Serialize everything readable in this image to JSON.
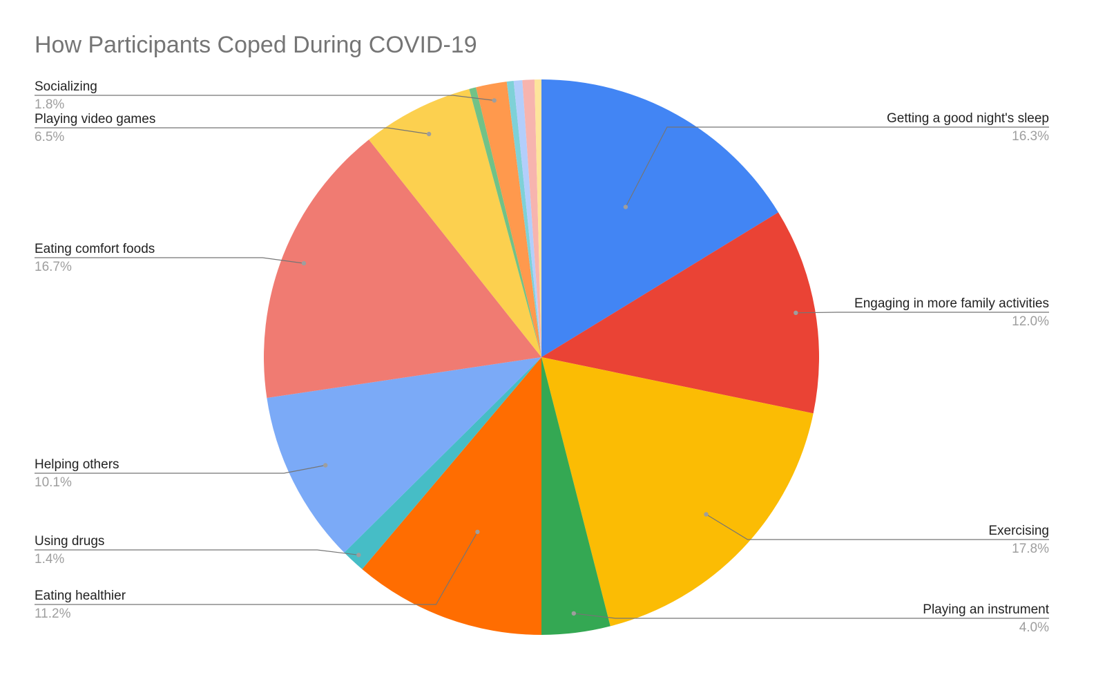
{
  "chart_data": {
    "type": "pie",
    "title": "How Participants Coped During COVID-19",
    "slices": [
      {
        "label": "Getting a good night's sleep",
        "value": 16.3,
        "pct_label": "16.3%",
        "color": "#4285f4"
      },
      {
        "label": "Engaging in more family activities",
        "value": 12.0,
        "pct_label": "12.0%",
        "color": "#ea4335"
      },
      {
        "label": "Exercising",
        "value": 17.8,
        "pct_label": "17.8%",
        "color": "#fbbc04"
      },
      {
        "label": "Playing an instrument",
        "value": 4.0,
        "pct_label": "4.0%",
        "color": "#34a853"
      },
      {
        "label": "Eating healthier",
        "value": 11.2,
        "pct_label": "11.2%",
        "color": "#ff6d01"
      },
      {
        "label": "Using drugs",
        "value": 1.4,
        "pct_label": "1.4%",
        "color": "#46bdc6"
      },
      {
        "label": "Helping others",
        "value": 10.1,
        "pct_label": "10.1%",
        "color": "#7baaf7"
      },
      {
        "label": "Eating comfort foods",
        "value": 16.7,
        "pct_label": "16.7%",
        "color": "#f07b72"
      },
      {
        "label": "Playing video games",
        "value": 6.5,
        "pct_label": "6.5%",
        "color": "#fcd04f"
      },
      {
        "label": "",
        "value": 0.4,
        "pct_label": "",
        "color": "#71c287"
      },
      {
        "label": "Socializing",
        "value": 1.8,
        "pct_label": "1.8%",
        "color": "#ff994d"
      },
      {
        "label": "",
        "value": 0.4,
        "pct_label": "",
        "color": "#7ed1d7"
      },
      {
        "label": "",
        "value": 0.5,
        "pct_label": "",
        "color": "#b3cefb"
      },
      {
        "label": "",
        "value": 0.7,
        "pct_label": "",
        "color": "#f7b4ae"
      },
      {
        "label": "",
        "value": 0.4,
        "pct_label": "",
        "color": "#fde49b"
      }
    ]
  }
}
